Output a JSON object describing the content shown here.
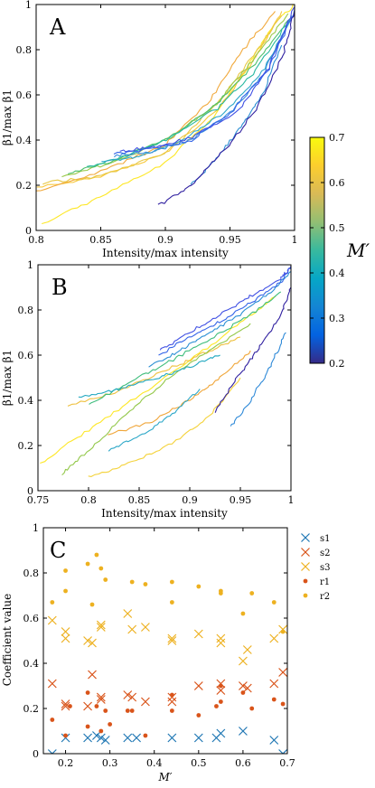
{
  "chart_data": [
    {
      "type": "line",
      "panel_label": "A",
      "xlabel": "Intensity/max intensity",
      "ylabel": "β1/max β1",
      "xlim": [
        0.8,
        1.0
      ],
      "ylim": [
        0,
        1.0
      ],
      "xticks": [
        0.8,
        0.85,
        0.9,
        0.95,
        1.0
      ],
      "xtick_labels": [
        "0.8",
        "0.85",
        "0.9",
        "0.95",
        "1"
      ],
      "yticks": [
        0,
        0.2,
        0.4,
        0.6,
        0.8,
        1.0
      ],
      "ytick_labels": [
        "0",
        "0.2",
        "0.4",
        "0.6",
        "0.8",
        "1"
      ],
      "grid": false,
      "series": [
        {
          "color": "#fde725",
          "x": [
            0.805,
            0.85,
            0.9,
            0.94,
            0.965,
            0.985,
            1.0
          ],
          "y": [
            0.03,
            0.15,
            0.3,
            0.52,
            0.74,
            0.92,
            1.0
          ]
        },
        {
          "color": "#f8c83a",
          "x": [
            0.8,
            0.85,
            0.9,
            0.94,
            0.97,
            0.99
          ],
          "y": [
            0.19,
            0.24,
            0.34,
            0.53,
            0.77,
            0.97
          ]
        },
        {
          "color": "#f1a93c",
          "x": [
            0.8,
            0.85,
            0.9,
            0.935,
            0.96,
            0.985
          ],
          "y": [
            0.17,
            0.26,
            0.38,
            0.58,
            0.8,
            0.97
          ]
        },
        {
          "color": "#e7c845",
          "x": [
            0.805,
            0.85,
            0.9,
            0.94,
            0.97,
            0.99
          ],
          "y": [
            0.21,
            0.24,
            0.34,
            0.56,
            0.79,
            0.95
          ]
        },
        {
          "color": "#9ac94a",
          "x": [
            0.82,
            0.86,
            0.9,
            0.94,
            0.97,
            0.995
          ],
          "y": [
            0.24,
            0.3,
            0.4,
            0.56,
            0.77,
            0.96
          ]
        },
        {
          "color": "#4ec06b",
          "x": [
            0.825,
            0.86,
            0.9,
            0.94,
            0.97,
            0.995
          ],
          "y": [
            0.25,
            0.31,
            0.4,
            0.56,
            0.74,
            0.93
          ]
        },
        {
          "color": "#27b8a0",
          "x": [
            0.84,
            0.87,
            0.9,
            0.94,
            0.97,
            0.998
          ],
          "y": [
            0.28,
            0.33,
            0.4,
            0.54,
            0.71,
            0.95
          ]
        },
        {
          "color": "#2ea8c8",
          "x": [
            0.85,
            0.88,
            0.91,
            0.945,
            0.975,
            0.998
          ],
          "y": [
            0.3,
            0.33,
            0.39,
            0.52,
            0.7,
            0.94
          ]
        },
        {
          "color": "#3b8fdc",
          "x": [
            0.86,
            0.89,
            0.92,
            0.95,
            0.975,
            0.998
          ],
          "y": [
            0.33,
            0.35,
            0.4,
            0.52,
            0.68,
            0.95
          ]
        },
        {
          "color": "#3565e8",
          "x": [
            0.86,
            0.89,
            0.92,
            0.95,
            0.98,
            1.0
          ],
          "y": [
            0.34,
            0.36,
            0.4,
            0.52,
            0.71,
            0.98
          ]
        },
        {
          "color": "#3f4fe3",
          "x": [
            0.865,
            0.89,
            0.92,
            0.955,
            0.98,
            1.0
          ],
          "y": [
            0.35,
            0.37,
            0.41,
            0.52,
            0.72,
            0.99
          ]
        },
        {
          "color": "#2b8fd4",
          "x": [
            0.92,
            0.94,
            0.96,
            0.975,
            0.99
          ],
          "y": [
            0.2,
            0.32,
            0.47,
            0.6,
            0.82
          ]
        },
        {
          "color": "#3020a0",
          "x": [
            0.895,
            0.92,
            0.945,
            0.97,
            0.99,
            1.0
          ],
          "y": [
            0.11,
            0.2,
            0.35,
            0.53,
            0.76,
            0.97
          ]
        }
      ]
    },
    {
      "type": "line",
      "panel_label": "B",
      "xlabel": "Intensity/max intensity",
      "ylabel": "β1/max β1",
      "xlim": [
        0.75,
        1.0
      ],
      "ylim": [
        0,
        1.0
      ],
      "xticks": [
        0.75,
        0.8,
        0.85,
        0.9,
        0.95,
        1.0
      ],
      "xtick_labels": [
        "0.75",
        "0.8",
        "0.85",
        "0.9",
        "0.95",
        "1"
      ],
      "yticks": [
        0,
        0.2,
        0.4,
        0.6,
        0.8,
        1.0
      ],
      "ytick_labels": [
        "0",
        "0.2",
        "0.4",
        "0.6",
        "0.8",
        "1"
      ],
      "grid": false,
      "series": [
        {
          "color": "#fde725",
          "x": [
            0.752,
            0.8,
            0.85,
            0.9,
            0.95,
            0.985
          ],
          "y": [
            0.12,
            0.27,
            0.42,
            0.58,
            0.74,
            0.86
          ]
        },
        {
          "color": "#f4d23a",
          "x": [
            0.8,
            0.84,
            0.88,
            0.92,
            0.95
          ],
          "y": [
            0.06,
            0.12,
            0.2,
            0.33,
            0.5
          ]
        },
        {
          "color": "#eec03e",
          "x": [
            0.78,
            0.83,
            0.88,
            0.92,
            0.95
          ],
          "y": [
            0.38,
            0.44,
            0.54,
            0.62,
            0.68
          ]
        },
        {
          "color": "#f0a63a",
          "x": [
            0.82,
            0.86,
            0.9,
            0.93,
            0.96
          ],
          "y": [
            0.25,
            0.3,
            0.4,
            0.5,
            0.62
          ]
        },
        {
          "color": "#93c84a",
          "x": [
            0.773,
            0.8,
            0.84,
            0.88,
            0.92,
            0.96
          ],
          "y": [
            0.07,
            0.18,
            0.35,
            0.5,
            0.62,
            0.74
          ]
        },
        {
          "color": "#3fbd7c",
          "x": [
            0.8,
            0.84,
            0.88,
            0.92,
            0.96,
            0.99
          ],
          "y": [
            0.38,
            0.48,
            0.57,
            0.67,
            0.78,
            0.88
          ]
        },
        {
          "color": "#22a8c0",
          "x": [
            0.79,
            0.83,
            0.87,
            0.9,
            0.93
          ],
          "y": [
            0.41,
            0.45,
            0.5,
            0.55,
            0.6
          ]
        },
        {
          "color": "#2ea8c8",
          "x": [
            0.82,
            0.85,
            0.88,
            0.91
          ],
          "y": [
            0.18,
            0.24,
            0.33,
            0.45
          ]
        },
        {
          "color": "#2b8fd4",
          "x": [
            0.86,
            0.89,
            0.92,
            0.95,
            0.98,
            1.0
          ],
          "y": [
            0.55,
            0.62,
            0.7,
            0.78,
            0.88,
            0.97
          ]
        },
        {
          "color": "#3565e8",
          "x": [
            0.87,
            0.9,
            0.93,
            0.96,
            0.99,
            1.0
          ],
          "y": [
            0.6,
            0.68,
            0.75,
            0.83,
            0.92,
            0.99
          ]
        },
        {
          "color": "#3f4fe3",
          "x": [
            0.87,
            0.9,
            0.93,
            0.96,
            0.99,
            1.0
          ],
          "y": [
            0.62,
            0.7,
            0.78,
            0.86,
            0.94,
            0.99
          ]
        },
        {
          "color": "#2f8ad8",
          "x": [
            0.94,
            0.96,
            0.98,
            0.995
          ],
          "y": [
            0.28,
            0.4,
            0.55,
            0.7
          ]
        },
        {
          "color": "#3020a0",
          "x": [
            0.925,
            0.95,
            0.97,
            0.99,
            1.0
          ],
          "y": [
            0.35,
            0.52,
            0.64,
            0.78,
            0.9
          ]
        }
      ]
    },
    {
      "type": "scatter",
      "panel_label": "C",
      "xlabel": "M′",
      "ylabel": "Coefficient value",
      "xlim": [
        0.15,
        0.7
      ],
      "ylim": [
        0,
        1.0
      ],
      "xticks": [
        0.2,
        0.3,
        0.4,
        0.5,
        0.6,
        0.7
      ],
      "xtick_labels": [
        "0.2",
        "0.3",
        "0.4",
        "0.5",
        "0.6",
        "0.7"
      ],
      "yticks": [
        0,
        0.2,
        0.4,
        0.6,
        0.8,
        1.0
      ],
      "ytick_labels": [
        "0",
        "0.2",
        "0.4",
        "0.6",
        "0.8",
        "1"
      ],
      "grid": false,
      "legend_position": "top-right, outside plot",
      "series": [
        {
          "name": "s1",
          "sub": "1",
          "marker": "x",
          "color": "#1f77b4",
          "x": [
            0.17,
            0.2,
            0.25,
            0.27,
            0.28,
            0.29,
            0.34,
            0.36,
            0.44,
            0.5,
            0.54,
            0.55,
            0.6,
            0.67,
            0.69
          ],
          "y": [
            0.0,
            0.07,
            0.07,
            0.08,
            0.07,
            0.06,
            0.07,
            0.07,
            0.07,
            0.07,
            0.07,
            0.09,
            0.1,
            0.06,
            0.0
          ]
        },
        {
          "name": "s2",
          "sub": "2",
          "marker": "x",
          "color": "#d9541a",
          "x": [
            0.17,
            0.2,
            0.2,
            0.25,
            0.26,
            0.28,
            0.28,
            0.34,
            0.35,
            0.38,
            0.44,
            0.44,
            0.5,
            0.55,
            0.55,
            0.6,
            0.61,
            0.67,
            0.69
          ],
          "y": [
            0.31,
            0.22,
            0.21,
            0.21,
            0.35,
            0.25,
            0.24,
            0.26,
            0.25,
            0.23,
            0.23,
            0.25,
            0.3,
            0.31,
            0.28,
            0.3,
            0.29,
            0.31,
            0.36
          ]
        },
        {
          "name": "s3",
          "sub": "3",
          "marker": "x",
          "color": "#edb120",
          "x": [
            0.17,
            0.2,
            0.2,
            0.25,
            0.26,
            0.28,
            0.28,
            0.34,
            0.35,
            0.38,
            0.44,
            0.44,
            0.5,
            0.55,
            0.55,
            0.6,
            0.61,
            0.67,
            0.69
          ],
          "y": [
            0.59,
            0.54,
            0.51,
            0.5,
            0.49,
            0.56,
            0.57,
            0.62,
            0.55,
            0.56,
            0.51,
            0.5,
            0.53,
            0.49,
            0.51,
            0.41,
            0.46,
            0.51,
            0.55
          ]
        },
        {
          "name": "r1",
          "sub": "1",
          "marker": "o",
          "color": "#d9541a",
          "x": [
            0.17,
            0.2,
            0.21,
            0.25,
            0.25,
            0.27,
            0.28,
            0.29,
            0.3,
            0.34,
            0.35,
            0.38,
            0.44,
            0.44,
            0.5,
            0.54,
            0.55,
            0.55,
            0.6,
            0.62,
            0.67,
            0.69
          ],
          "y": [
            0.15,
            0.08,
            0.21,
            0.12,
            0.27,
            0.21,
            0.1,
            0.19,
            0.13,
            0.19,
            0.19,
            0.08,
            0.26,
            0.19,
            0.17,
            0.21,
            0.3,
            0.23,
            0.27,
            0.2,
            0.24,
            0.22
          ]
        },
        {
          "name": "r2",
          "sub": "2",
          "marker": "o",
          "color": "#edb120",
          "x": [
            0.17,
            0.2,
            0.2,
            0.25,
            0.26,
            0.27,
            0.28,
            0.29,
            0.35,
            0.38,
            0.44,
            0.44,
            0.5,
            0.55,
            0.55,
            0.6,
            0.62,
            0.67,
            0.69
          ],
          "y": [
            0.67,
            0.81,
            0.72,
            0.84,
            0.66,
            0.88,
            0.82,
            0.77,
            0.76,
            0.75,
            0.76,
            0.67,
            0.74,
            0.72,
            0.71,
            0.62,
            0.71,
            0.67,
            0.54
          ]
        }
      ]
    }
  ],
  "colorbar": {
    "label": "M′",
    "range": [
      0.2,
      0.7
    ],
    "ticks": [
      0.2,
      0.3,
      0.4,
      0.5,
      0.6,
      0.7
    ],
    "tick_labels": [
      "0.2",
      "0.3",
      "0.4",
      "0.5",
      "0.6",
      "0.7"
    ],
    "colormap": "parula",
    "stops": [
      "#352a87",
      "#0363e1",
      "#1485d4",
      "#06a7c6",
      "#38b99e",
      "#92bf73",
      "#d9ba56",
      "#fcce2e",
      "#f9fb0e"
    ]
  }
}
